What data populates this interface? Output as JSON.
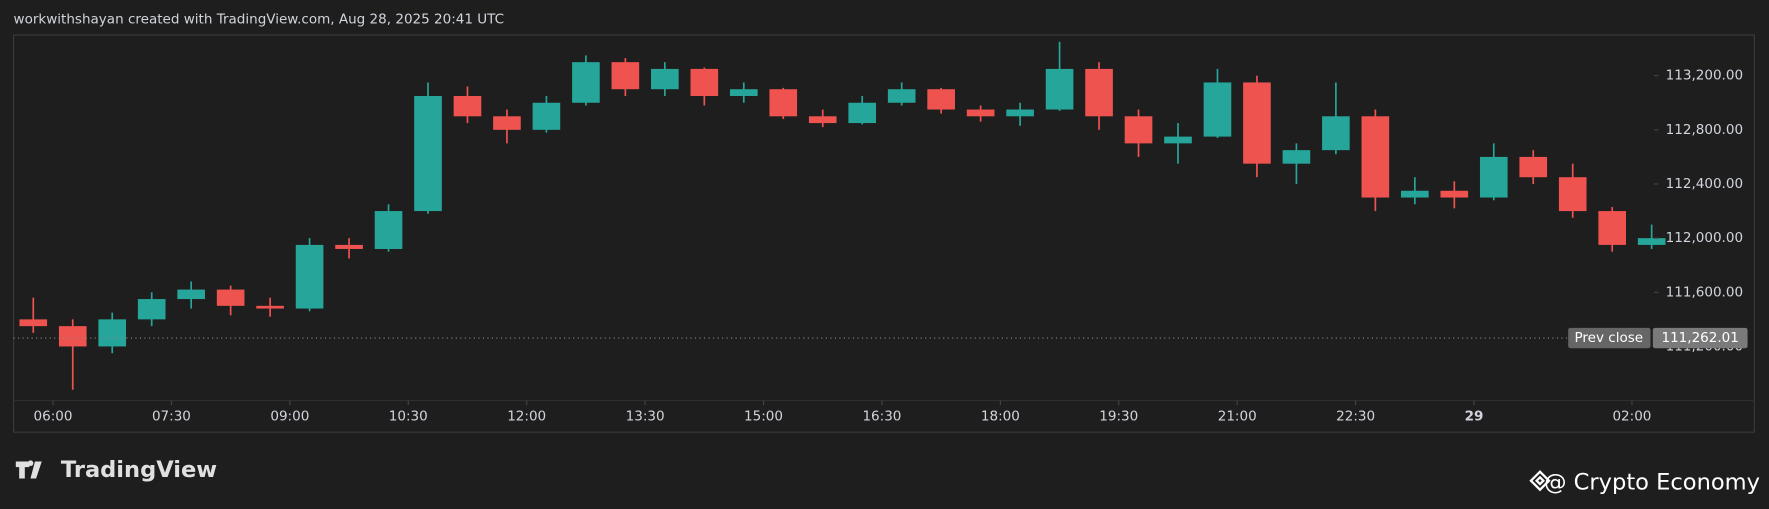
{
  "chart_data": {
    "type": "candlestick",
    "title": "workwithshayan created with TradingView.com, Aug 28, 2025 20:41 UTC",
    "brand": "TradingView",
    "watermark": "@ Crypto Economy",
    "x": [
      5.5,
      6,
      6.5,
      7,
      7.5,
      8,
      8.5,
      9,
      9.5,
      10,
      10.5,
      11,
      11.5,
      12,
      12.5,
      13,
      13.5,
      14,
      14.5,
      15,
      15.5,
      16,
      16.5,
      17,
      17.5,
      18,
      18.5,
      19,
      19.5,
      20,
      20.5,
      21,
      21.5,
      22,
      22.5,
      23,
      23.5,
      24,
      24.5,
      25,
      25.5,
      26
    ],
    "open": [
      111400,
      111350,
      111200,
      111400,
      111550,
      111620,
      111500,
      111480,
      111950,
      111920,
      112200,
      113050,
      112900,
      112800,
      113000,
      113300,
      113100,
      113250,
      113050,
      113100,
      112900,
      112850,
      113000,
      113100,
      112950,
      112900,
      112950,
      113250,
      112900,
      112700,
      112750,
      113150,
      112550,
      112650,
      112900,
      112300,
      112350,
      112300,
      112600,
      112450,
      112200,
      111950
    ],
    "high": [
      111560,
      111400,
      111450,
      111600,
      111680,
      111650,
      111560,
      112000,
      112000,
      112250,
      113150,
      113120,
      112950,
      113050,
      113350,
      113330,
      113300,
      113260,
      113150,
      113110,
      112950,
      113050,
      113150,
      113110,
      112980,
      113000,
      113450,
      113300,
      112950,
      112850,
      113250,
      113200,
      112700,
      113150,
      112950,
      112450,
      112420,
      112700,
      112650,
      112550,
      112230,
      112100
    ],
    "low": [
      111300,
      110880,
      111150,
      111350,
      111480,
      111430,
      111420,
      111460,
      111850,
      111900,
      112180,
      112850,
      112700,
      112780,
      112980,
      113050,
      113050,
      112980,
      113000,
      112880,
      112820,
      112840,
      112980,
      112920,
      112860,
      112830,
      112940,
      112800,
      112600,
      112550,
      112740,
      112450,
      112400,
      112620,
      112200,
      112250,
      112220,
      112280,
      112400,
      112150,
      111900,
      111920
    ],
    "close": [
      111350,
      111200,
      111400,
      111550,
      111620,
      111500,
      111480,
      111950,
      111920,
      112200,
      113050,
      112900,
      112800,
      113000,
      113300,
      113100,
      113250,
      113050,
      113100,
      112900,
      112850,
      113000,
      113100,
      112950,
      112900,
      112950,
      113250,
      112900,
      112700,
      112750,
      113150,
      112550,
      112650,
      112900,
      112300,
      112350,
      112300,
      112600,
      112450,
      112200,
      111950,
      112000
    ],
    "up_color": "#26a69a",
    "down_color": "#ef5350",
    "xlim": [
      5.5,
      26.25
    ],
    "xticks": [
      {
        "value": 6,
        "label": "06:00"
      },
      {
        "value": 7.5,
        "label": "07:30"
      },
      {
        "value": 9,
        "label": "09:00"
      },
      {
        "value": 10.5,
        "label": "10:30"
      },
      {
        "value": 12,
        "label": "12:00"
      },
      {
        "value": 13.5,
        "label": "13:30"
      },
      {
        "value": 15,
        "label": "15:00"
      },
      {
        "value": 16.5,
        "label": "16:30"
      },
      {
        "value": 18,
        "label": "18:00"
      },
      {
        "value": 19.5,
        "label": "19:30"
      },
      {
        "value": 21,
        "label": "21:00"
      },
      {
        "value": 22.5,
        "label": "22:30"
      },
      {
        "value": 24,
        "label": "29"
      },
      {
        "value": 26,
        "label": "02:00"
      }
    ],
    "ylim": [
      110800,
      113500
    ],
    "yticks": [
      {
        "value": 111200,
        "label": "111,200.00"
      },
      {
        "value": 111600,
        "label": "111,600.00"
      },
      {
        "value": 112000,
        "label": "112,000.00"
      },
      {
        "value": 112400,
        "label": "112,400.00"
      },
      {
        "value": 112800,
        "label": "112,800.00"
      },
      {
        "value": 113200,
        "label": "113,200.00"
      }
    ],
    "prev_close": {
      "name": "Prev close",
      "value": 111262.01,
      "label": "111,262.01"
    }
  }
}
